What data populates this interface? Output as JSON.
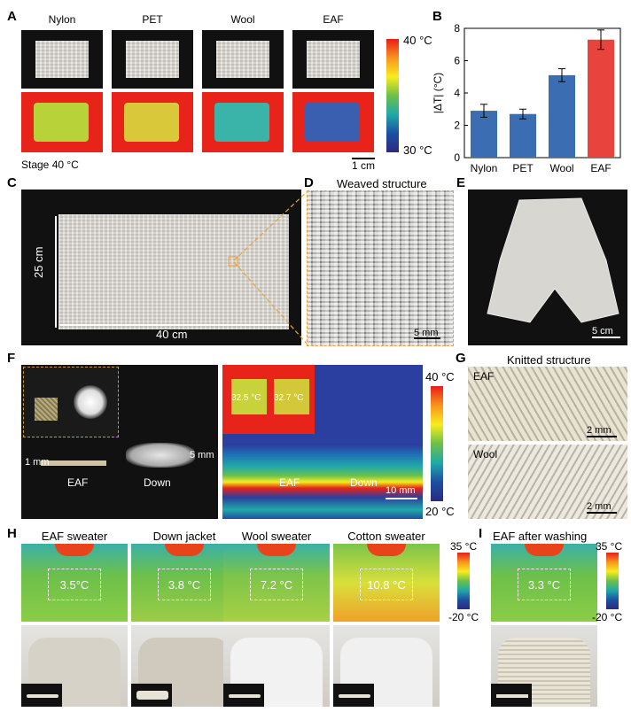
{
  "panels": {
    "A": {
      "letter": "A",
      "samples": [
        "Nylon",
        "PET",
        "Wool",
        "EAF"
      ],
      "stage": "Stage  40 °C",
      "scale": "1 cm",
      "cb_top": "40 °C",
      "cb_bottom": "30 °C"
    },
    "B": {
      "letter": "B"
    },
    "C": {
      "letter": "C",
      "height": "25 cm",
      "width": "40 cm"
    },
    "D": {
      "letter": "D",
      "title": "Weaved structure",
      "scale": "5 mm"
    },
    "E": {
      "letter": "E",
      "scale": "5 cm"
    },
    "F": {
      "letter": "F",
      "thick_eaf": "1 mm",
      "thick_down": "5 mm",
      "eaf": "EAF",
      "down": "Down",
      "t1": "32.5 °C",
      "t2": "32.7 °C",
      "eaf2": "EAF",
      "down2": "Down",
      "scale": "10 mm",
      "cb_top": "40 °C",
      "cb_bottom": "20 °C"
    },
    "G": {
      "letter": "G",
      "title": "Knitted structure",
      "eaf": "EAF",
      "wool": "Wool",
      "scale1": "2 mm",
      "scale2": "2 mm"
    },
    "H": {
      "letter": "H",
      "items": [
        {
          "title": "EAF sweater",
          "temp": "3.5°C"
        },
        {
          "title": "Down jacket",
          "temp": "3.8 °C"
        },
        {
          "title": "Wool sweater",
          "temp": "7.2 °C"
        },
        {
          "title": "Cotton sweater",
          "temp": "10.8 °C"
        }
      ],
      "cb_top": "35 °C",
      "cb_bottom": "-20 °C"
    },
    "I": {
      "letter": "I",
      "title": "EAF after washing",
      "temp": "3.3 °C",
      "cb_top": "35 °C",
      "cb_bottom": "-20 °C"
    }
  },
  "chart_data": {
    "type": "bar",
    "categories": [
      "Nylon",
      "PET",
      "Wool",
      "EAF"
    ],
    "values": [
      2.9,
      2.7,
      5.1,
      7.3
    ],
    "errors": [
      0.4,
      0.3,
      0.4,
      0.6
    ],
    "ylabel": "|ΔT| (°C)",
    "ylim": [
      0,
      8
    ],
    "yticks": [
      0,
      2,
      4,
      6,
      8
    ],
    "colors": [
      "#3b6db3",
      "#3b6db3",
      "#3b6db3",
      "#e8433d"
    ]
  }
}
